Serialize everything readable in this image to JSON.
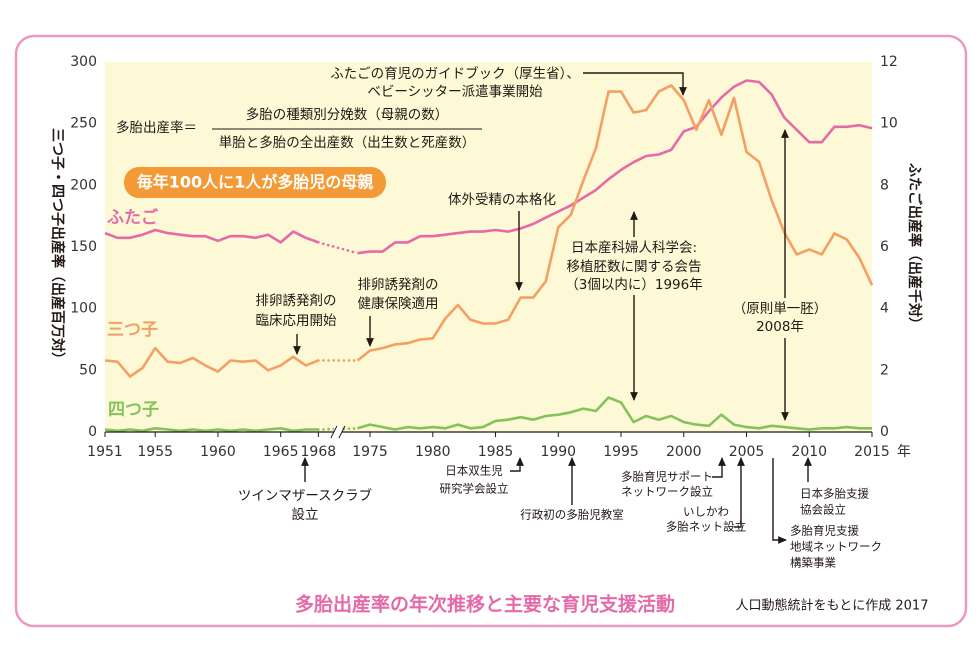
{
  "chart_data": {
    "type": "line",
    "title": "多胎出産率の年次推移と主要な育児支援活動",
    "source": "人口動態統計をもとに作成 2017",
    "ylabel": "三つ子・四つ子出産率（出産百万対）",
    "y2label": "ふたご出産率（出産千対）",
    "x_unit": "年",
    "formula": {
      "left": "多胎出産率＝",
      "numerator": "多胎の種類別分娩数（母親の数）",
      "denominator": "単胎と多胎の全出産数（出生数と死産数）"
    },
    "badge": "毎年100人に1人が多胎児の母親",
    "annotations": [
      {
        "lines": [
          "ふたごの育児のガイドブック（厚生省）、",
          "ベビーシッター派遣事業開始"
        ]
      },
      {
        "lines": [
          "体外受精の本格化"
        ]
      },
      {
        "lines": [
          "日本産科婦人科学会:",
          "移植胚数に関する会告",
          "（3個以内に）1996年"
        ]
      },
      {
        "lines": [
          "（原則単一胚）",
          "2008年"
        ]
      },
      {
        "lines": [
          "排卵誘発剤の",
          "臨床応用開始"
        ]
      },
      {
        "lines": [
          "排卵誘発剤の",
          "健康保険適用"
        ]
      },
      {
        "lines": [
          "ツインマザースクラブ",
          "設立"
        ]
      },
      {
        "lines": [
          "日本双生児",
          "研究学会設立"
        ]
      },
      {
        "lines": [
          "行政初の多胎児教室"
        ]
      },
      {
        "lines": [
          "多胎育児サポート",
          "ネットワーク設立"
        ]
      },
      {
        "lines": [
          "いしかわ",
          "多胎ネット設立"
        ]
      },
      {
        "lines": [
          "多胎育児支援",
          "地域ネットワーク",
          "構築事業"
        ]
      },
      {
        "lines": [
          "日本多胎支援",
          "協会設立"
        ]
      }
    ],
    "x": [
      1951,
      1952,
      1953,
      1954,
      1955,
      1956,
      1957,
      1958,
      1959,
      1960,
      1961,
      1962,
      1963,
      1964,
      1965,
      1966,
      1967,
      1968,
      1969,
      1970,
      1971,
      1972,
      1973,
      1974,
      1975,
      1976,
      1977,
      1978,
      1979,
      1980,
      1981,
      1982,
      1983,
      1984,
      1985,
      1986,
      1987,
      1988,
      1989,
      1990,
      1991,
      1992,
      1993,
      1994,
      1995,
      1996,
      1997,
      1998,
      1999,
      2000,
      2001,
      2002,
      2003,
      2004,
      2005,
      2006,
      2007,
      2008,
      2009,
      2010,
      2011,
      2012,
      2013,
      2014,
      2015
    ],
    "xlim": [
      1951,
      2015
    ],
    "xticks": [
      1951,
      1955,
      1960,
      1965,
      1968,
      1975,
      1980,
      1985,
      1990,
      1995,
      2000,
      2005,
      2010,
      2015
    ],
    "ylim": [
      0,
      300
    ],
    "yticks": [
      0,
      50,
      100,
      150,
      200,
      250,
      300
    ],
    "y2lim": [
      0,
      12
    ],
    "y2ticks": [
      0,
      2,
      4,
      6,
      8,
      10,
      12
    ],
    "series": [
      {
        "name": "ふたご",
        "color": "#e46aa8",
        "axis": "y2",
        "values": [
          6.45,
          6.3,
          6.3,
          6.4,
          6.55,
          6.45,
          6.4,
          6.35,
          6.35,
          6.2,
          6.35,
          6.35,
          6.3,
          6.4,
          6.15,
          6.5,
          6.3,
          6.15,
          null,
          null,
          null,
          null,
          null,
          5.8,
          5.85,
          5.85,
          6.15,
          6.15,
          6.35,
          6.35,
          6.4,
          6.45,
          6.5,
          6.5,
          6.55,
          6.5,
          6.6,
          6.75,
          6.95,
          7.15,
          7.35,
          7.6,
          7.85,
          8.2,
          8.5,
          8.75,
          8.95,
          9.0,
          9.15,
          9.75,
          9.9,
          10.4,
          10.85,
          11.2,
          11.4,
          11.35,
          10.95,
          10.2,
          9.8,
          9.4,
          9.4,
          9.9,
          9.9,
          9.95,
          9.85
        ]
      },
      {
        "name": "三つ子",
        "color": "#f3a064",
        "values": [
          58,
          57,
          45,
          52,
          68,
          57,
          56,
          60,
          54,
          49,
          58,
          57,
          58,
          50,
          54,
          61,
          54,
          58,
          null,
          null,
          null,
          null,
          null,
          58,
          66,
          68,
          71,
          72,
          75,
          76,
          92,
          103,
          91,
          88,
          88,
          91,
          109,
          109,
          122,
          166,
          176,
          204,
          230,
          276,
          276,
          259,
          261,
          276,
          281,
          269,
          245,
          269,
          241,
          271,
          227,
          219,
          188,
          162,
          144,
          148,
          144,
          161,
          156,
          141,
          119
        ]
      },
      {
        "name": "四つ子",
        "color": "#86c25a",
        "values": [
          2,
          1,
          2,
          1,
          3,
          2,
          1,
          2,
          1,
          2,
          1,
          2,
          1,
          2,
          3,
          1,
          2,
          2,
          null,
          null,
          null,
          null,
          null,
          3,
          6,
          4,
          2,
          4,
          3,
          4,
          3,
          6,
          3,
          4,
          9,
          10,
          12,
          10,
          13,
          14,
          16,
          19,
          17,
          28,
          24,
          8,
          13,
          10,
          13,
          8,
          6,
          5,
          14,
          6,
          4,
          3,
          5,
          4,
          3,
          2,
          3,
          3,
          4,
          3,
          3
        ]
      }
    ]
  }
}
